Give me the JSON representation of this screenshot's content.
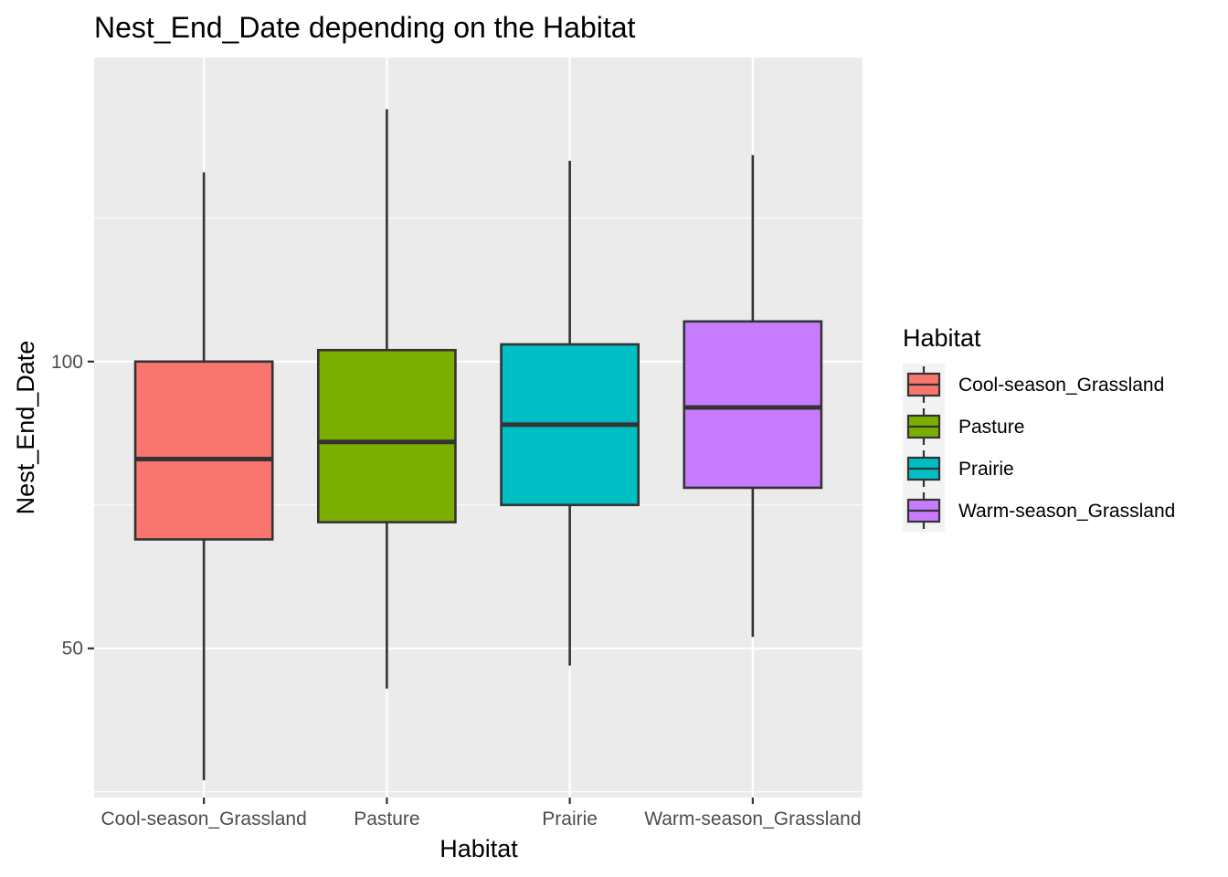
{
  "chart_data": {
    "type": "box",
    "title": "Nest_End_Date depending on the Habitat",
    "xlabel": "Habitat",
    "ylabel": "Nest_End_Date",
    "ylim": [
      24,
      153
    ],
    "yticks": [
      50,
      100
    ],
    "categories": [
      "Cool-season_Grassland",
      "Pasture",
      "Prairie",
      "Warm-season_Grassland"
    ],
    "boxes": [
      {
        "category": "Cool-season_Grassland",
        "min": 27,
        "q1": 69,
        "median": 83,
        "q3": 100,
        "max": 133,
        "color": "#F8766D"
      },
      {
        "category": "Pasture",
        "min": 43,
        "q1": 72,
        "median": 86,
        "q3": 102,
        "max": 144,
        "color": "#7CAE00"
      },
      {
        "category": "Prairie",
        "min": 47,
        "q1": 75,
        "median": 89,
        "q3": 103,
        "max": 135,
        "color": "#00BFC4"
      },
      {
        "category": "Warm-season_Grassland",
        "min": 52,
        "q1": 78,
        "median": 92,
        "q3": 107,
        "max": 136,
        "color": "#C77CFF"
      }
    ],
    "grid": true,
    "legend": {
      "title": "Habitat",
      "placement": "right",
      "entries": [
        "Cool-season_Grassland",
        "Pasture",
        "Prairie",
        "Warm-season_Grassland"
      ]
    }
  }
}
